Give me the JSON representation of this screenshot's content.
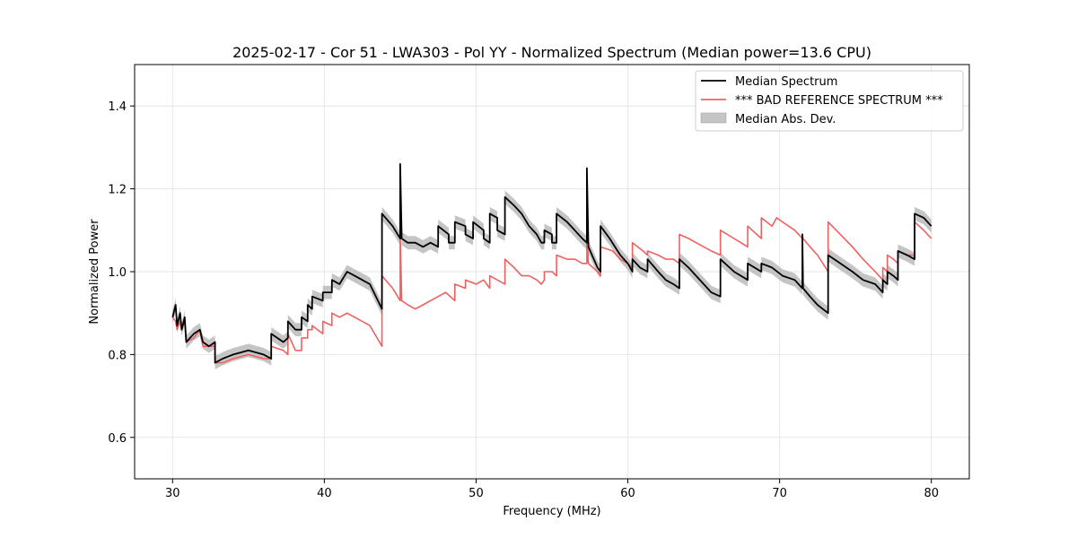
{
  "chart_data": {
    "type": "line",
    "title": "2025-02-17 - Cor 51 - LWA303 - Pol YY - Normalized Spectrum (Median power=13.6 CPU)",
    "xlabel": "Frequency (MHz)",
    "ylabel": "Normalized Power",
    "xlim": [
      27.5,
      82.5
    ],
    "ylim": [
      0.5,
      1.5
    ],
    "xticks": [
      30,
      40,
      50,
      60,
      70,
      80
    ],
    "yticks": [
      0.6,
      0.8,
      1.0,
      1.2,
      1.4
    ],
    "xtick_labels": [
      "30",
      "40",
      "50",
      "60",
      "70",
      "80"
    ],
    "ytick_labels": [
      "0.6",
      "0.8",
      "1.0",
      "1.2",
      "1.4"
    ],
    "grid": true,
    "legend_position": "top-right",
    "band_halfwidth": 0.016,
    "series": [
      {
        "name": "Median Spectrum",
        "color": "#000000",
        "points": [
          [
            30.0,
            0.89
          ],
          [
            30.2,
            0.92
          ],
          [
            30.3,
            0.87
          ],
          [
            30.5,
            0.9
          ],
          [
            30.6,
            0.86
          ],
          [
            30.8,
            0.89
          ],
          [
            30.9,
            0.83
          ],
          [
            31.4,
            0.85
          ],
          [
            31.8,
            0.86
          ],
          [
            32.0,
            0.83
          ],
          [
            32.4,
            0.82
          ],
          [
            32.8,
            0.83
          ],
          [
            32.8,
            0.78
          ],
          [
            33.3,
            0.79
          ],
          [
            34.0,
            0.8
          ],
          [
            35.0,
            0.81
          ],
          [
            36.0,
            0.8
          ],
          [
            36.5,
            0.79
          ],
          [
            36.5,
            0.85
          ],
          [
            37.3,
            0.83
          ],
          [
            37.6,
            0.84
          ],
          [
            37.6,
            0.88
          ],
          [
            38.1,
            0.86
          ],
          [
            38.5,
            0.86
          ],
          [
            38.5,
            0.89
          ],
          [
            38.9,
            0.88
          ],
          [
            38.9,
            0.92
          ],
          [
            39.2,
            0.91
          ],
          [
            39.2,
            0.94
          ],
          [
            39.9,
            0.93
          ],
          [
            39.9,
            0.95
          ],
          [
            40.5,
            0.95
          ],
          [
            40.5,
            0.98
          ],
          [
            41.0,
            0.97
          ],
          [
            41.5,
            1.0
          ],
          [
            42.0,
            0.99
          ],
          [
            42.5,
            0.98
          ],
          [
            43.0,
            0.97
          ],
          [
            43.8,
            0.91
          ],
          [
            43.8,
            1.14
          ],
          [
            44.5,
            1.11
          ],
          [
            45.0,
            1.08
          ],
          [
            45.0,
            1.26
          ],
          [
            45.1,
            1.08
          ],
          [
            45.5,
            1.07
          ],
          [
            46.0,
            1.07
          ],
          [
            46.5,
            1.06
          ],
          [
            47.0,
            1.07
          ],
          [
            47.5,
            1.06
          ],
          [
            47.5,
            1.11
          ],
          [
            48.2,
            1.09
          ],
          [
            48.2,
            1.07
          ],
          [
            48.6,
            1.07
          ],
          [
            48.6,
            1.12
          ],
          [
            49.3,
            1.11
          ],
          [
            49.3,
            1.09
          ],
          [
            49.8,
            1.08
          ],
          [
            49.8,
            1.12
          ],
          [
            50.5,
            1.1
          ],
          [
            50.5,
            1.08
          ],
          [
            50.9,
            1.07
          ],
          [
            50.9,
            1.14
          ],
          [
            51.4,
            1.13
          ],
          [
            51.4,
            1.1
          ],
          [
            51.9,
            1.09
          ],
          [
            51.9,
            1.18
          ],
          [
            52.5,
            1.16
          ],
          [
            53.0,
            1.14
          ],
          [
            53.5,
            1.11
          ],
          [
            54.0,
            1.09
          ],
          [
            54.3,
            1.07
          ],
          [
            54.5,
            1.07
          ],
          [
            54.5,
            1.1
          ],
          [
            55.0,
            1.09
          ],
          [
            55.0,
            1.07
          ],
          [
            55.3,
            1.07
          ],
          [
            55.3,
            1.14
          ],
          [
            56.0,
            1.12
          ],
          [
            56.5,
            1.1
          ],
          [
            57.0,
            1.08
          ],
          [
            57.3,
            1.07
          ],
          [
            57.3,
            1.25
          ],
          [
            57.4,
            1.06
          ],
          [
            58.0,
            1.01
          ],
          [
            58.2,
            1.0
          ],
          [
            58.2,
            1.11
          ],
          [
            58.8,
            1.08
          ],
          [
            59.5,
            1.04
          ],
          [
            60.0,
            1.02
          ],
          [
            60.3,
            1.0
          ],
          [
            60.3,
            1.03
          ],
          [
            60.8,
            1.01
          ],
          [
            61.3,
            1.0
          ],
          [
            61.3,
            1.03
          ],
          [
            62.0,
            1.0
          ],
          [
            62.5,
            0.98
          ],
          [
            63.0,
            0.97
          ],
          [
            63.4,
            0.96
          ],
          [
            63.4,
            1.03
          ],
          [
            64.0,
            1.01
          ],
          [
            64.5,
            0.99
          ],
          [
            65.0,
            0.97
          ],
          [
            65.5,
            0.95
          ],
          [
            66.1,
            0.94
          ],
          [
            66.1,
            1.03
          ],
          [
            67.0,
            1.0
          ],
          [
            67.9,
            0.98
          ],
          [
            67.9,
            1.02
          ],
          [
            68.8,
            1.0
          ],
          [
            68.8,
            1.02
          ],
          [
            69.5,
            1.01
          ],
          [
            70.2,
            0.99
          ],
          [
            71.0,
            0.98
          ],
          [
            71.5,
            0.96
          ],
          [
            71.5,
            1.09
          ],
          [
            71.55,
            0.96
          ],
          [
            72.0,
            0.94
          ],
          [
            72.5,
            0.92
          ],
          [
            73.2,
            0.9
          ],
          [
            73.2,
            1.04
          ],
          [
            74.0,
            1.02
          ],
          [
            74.8,
            1.0
          ],
          [
            75.5,
            0.98
          ],
          [
            76.3,
            0.97
          ],
          [
            76.8,
            0.95
          ],
          [
            76.8,
            0.98
          ],
          [
            77.1,
            0.97
          ],
          [
            77.1,
            1.0
          ],
          [
            77.5,
            0.99
          ],
          [
            77.8,
            0.98
          ],
          [
            77.8,
            1.05
          ],
          [
            78.4,
            1.04
          ],
          [
            78.9,
            1.03
          ],
          [
            78.9,
            1.14
          ],
          [
            79.5,
            1.13
          ],
          [
            80.0,
            1.11
          ]
        ]
      },
      {
        "name": "*** BAD REFERENCE SPECTRUM ***",
        "color": "#f06060",
        "points": [
          [
            30.0,
            0.89
          ],
          [
            30.2,
            0.88
          ],
          [
            30.3,
            0.86
          ],
          [
            30.5,
            0.88
          ],
          [
            30.6,
            0.86
          ],
          [
            30.8,
            0.88
          ],
          [
            30.9,
            0.83
          ],
          [
            31.4,
            0.84
          ],
          [
            31.8,
            0.86
          ],
          [
            32.0,
            0.82
          ],
          [
            32.4,
            0.82
          ],
          [
            32.8,
            0.82
          ],
          [
            32.8,
            0.78
          ],
          [
            33.3,
            0.78
          ],
          [
            34.0,
            0.79
          ],
          [
            35.0,
            0.8
          ],
          [
            36.0,
            0.79
          ],
          [
            36.5,
            0.79
          ],
          [
            36.5,
            0.82
          ],
          [
            37.3,
            0.81
          ],
          [
            37.6,
            0.8
          ],
          [
            37.6,
            0.85
          ],
          [
            38.1,
            0.81
          ],
          [
            38.5,
            0.81
          ],
          [
            38.5,
            0.84
          ],
          [
            38.9,
            0.84
          ],
          [
            38.9,
            0.86
          ],
          [
            39.2,
            0.86
          ],
          [
            39.2,
            0.87
          ],
          [
            39.9,
            0.85
          ],
          [
            39.9,
            0.88
          ],
          [
            40.5,
            0.87
          ],
          [
            40.5,
            0.9
          ],
          [
            41.0,
            0.89
          ],
          [
            41.5,
            0.9
          ],
          [
            42.0,
            0.89
          ],
          [
            43.0,
            0.87
          ],
          [
            43.8,
            0.82
          ],
          [
            43.8,
            0.99
          ],
          [
            44.5,
            0.96
          ],
          [
            45.0,
            0.93
          ],
          [
            45.0,
            1.09
          ],
          [
            45.1,
            0.93
          ],
          [
            45.5,
            0.92
          ],
          [
            46.0,
            0.91
          ],
          [
            46.5,
            0.92
          ],
          [
            47.0,
            0.93
          ],
          [
            47.5,
            0.94
          ],
          [
            48.0,
            0.95
          ],
          [
            48.6,
            0.93
          ],
          [
            48.6,
            0.97
          ],
          [
            49.3,
            0.96
          ],
          [
            49.3,
            0.98
          ],
          [
            50.0,
            0.97
          ],
          [
            50.5,
            0.98
          ],
          [
            50.9,
            0.96
          ],
          [
            50.9,
            0.99
          ],
          [
            51.4,
            0.98
          ],
          [
            51.9,
            0.97
          ],
          [
            51.9,
            1.03
          ],
          [
            52.5,
            1.01
          ],
          [
            53.0,
            0.99
          ],
          [
            53.5,
            0.99
          ],
          [
            54.0,
            0.98
          ],
          [
            54.3,
            0.97
          ],
          [
            54.5,
            0.98
          ],
          [
            54.5,
            1.0
          ],
          [
            55.0,
            1.0
          ],
          [
            55.3,
            0.99
          ],
          [
            55.3,
            1.04
          ],
          [
            56.0,
            1.03
          ],
          [
            56.5,
            1.03
          ],
          [
            57.0,
            1.02
          ],
          [
            57.3,
            1.02
          ],
          [
            57.3,
            1.1
          ],
          [
            57.4,
            1.02
          ],
          [
            58.0,
            1.0
          ],
          [
            58.2,
            0.99
          ],
          [
            58.2,
            1.06
          ],
          [
            59.0,
            1.05
          ],
          [
            59.5,
            1.03
          ],
          [
            60.0,
            1.02
          ],
          [
            60.3,
            1.01
          ],
          [
            60.3,
            1.07
          ],
          [
            61.0,
            1.05
          ],
          [
            61.3,
            1.04
          ],
          [
            61.3,
            1.05
          ],
          [
            62.0,
            1.04
          ],
          [
            62.5,
            1.03
          ],
          [
            63.0,
            1.03
          ],
          [
            63.4,
            1.02
          ],
          [
            63.4,
            1.09
          ],
          [
            64.0,
            1.08
          ],
          [
            64.5,
            1.07
          ],
          [
            65.0,
            1.06
          ],
          [
            65.5,
            1.05
          ],
          [
            66.1,
            1.04
          ],
          [
            66.1,
            1.1
          ],
          [
            67.0,
            1.08
          ],
          [
            67.9,
            1.06
          ],
          [
            67.9,
            1.11
          ],
          [
            68.8,
            1.08
          ],
          [
            68.8,
            1.13
          ],
          [
            69.5,
            1.11
          ],
          [
            69.8,
            1.13
          ],
          [
            70.2,
            1.12
          ],
          [
            71.0,
            1.1
          ],
          [
            71.5,
            1.08
          ],
          [
            71.5,
            1.09
          ],
          [
            71.55,
            1.08
          ],
          [
            72.0,
            1.06
          ],
          [
            72.5,
            1.04
          ],
          [
            73.2,
            1.0
          ],
          [
            73.2,
            1.12
          ],
          [
            74.0,
            1.09
          ],
          [
            74.8,
            1.06
          ],
          [
            75.5,
            1.03
          ],
          [
            76.3,
            1.0
          ],
          [
            76.8,
            0.98
          ],
          [
            76.8,
            1.01
          ],
          [
            77.1,
            1.0
          ],
          [
            77.1,
            1.04
          ],
          [
            77.5,
            1.03
          ],
          [
            77.8,
            1.02
          ],
          [
            77.8,
            1.05
          ],
          [
            78.4,
            1.04
          ],
          [
            78.9,
            1.04
          ],
          [
            78.9,
            1.12
          ],
          [
            79.5,
            1.1
          ],
          [
            80.0,
            1.08
          ]
        ]
      }
    ],
    "legend": [
      {
        "label": "Median Spectrum",
        "kind": "line",
        "color": "#000000"
      },
      {
        "label": "*** BAD REFERENCE SPECTRUM ***",
        "kind": "line",
        "color": "#f06060"
      },
      {
        "label": "Median Abs. Dev.",
        "kind": "patch",
        "color": "#bbbbbb"
      }
    ]
  }
}
